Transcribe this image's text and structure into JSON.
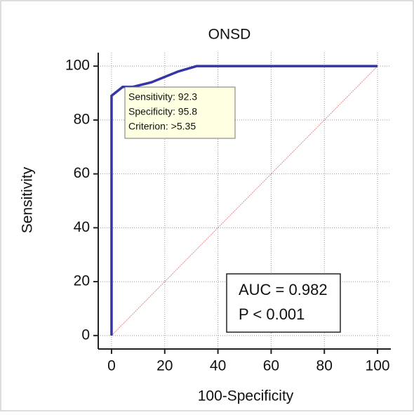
{
  "chart_data": {
    "type": "line",
    "title": "ONSD",
    "x_label": "100-Specificity",
    "y_label": "Sensitivity",
    "xlim": [
      -5,
      105
    ],
    "ylim": [
      -5,
      105
    ],
    "xticks": [
      0,
      20,
      40,
      60,
      80,
      100
    ],
    "yticks": [
      0,
      20,
      40,
      60,
      80,
      100
    ],
    "grid": true,
    "series": [
      {
        "color": "#3535a8",
        "x": [
          0,
          0,
          4.2,
          8,
          15,
          20,
          25,
          32,
          100
        ],
        "values": [
          0,
          89,
          92.3,
          92.3,
          94,
          96,
          98,
          100,
          100
        ]
      },
      {
        "color": "#e08a8a",
        "x": [
          0,
          100
        ],
        "values": [
          0,
          100
        ]
      }
    ],
    "tooltip": [
      "Sensitivity: 92.3",
      "Specificity: 95.8",
      "Criterion: >5.35"
    ],
    "annotations": [
      "AUC = 0.982",
      "P < 0.001"
    ]
  }
}
